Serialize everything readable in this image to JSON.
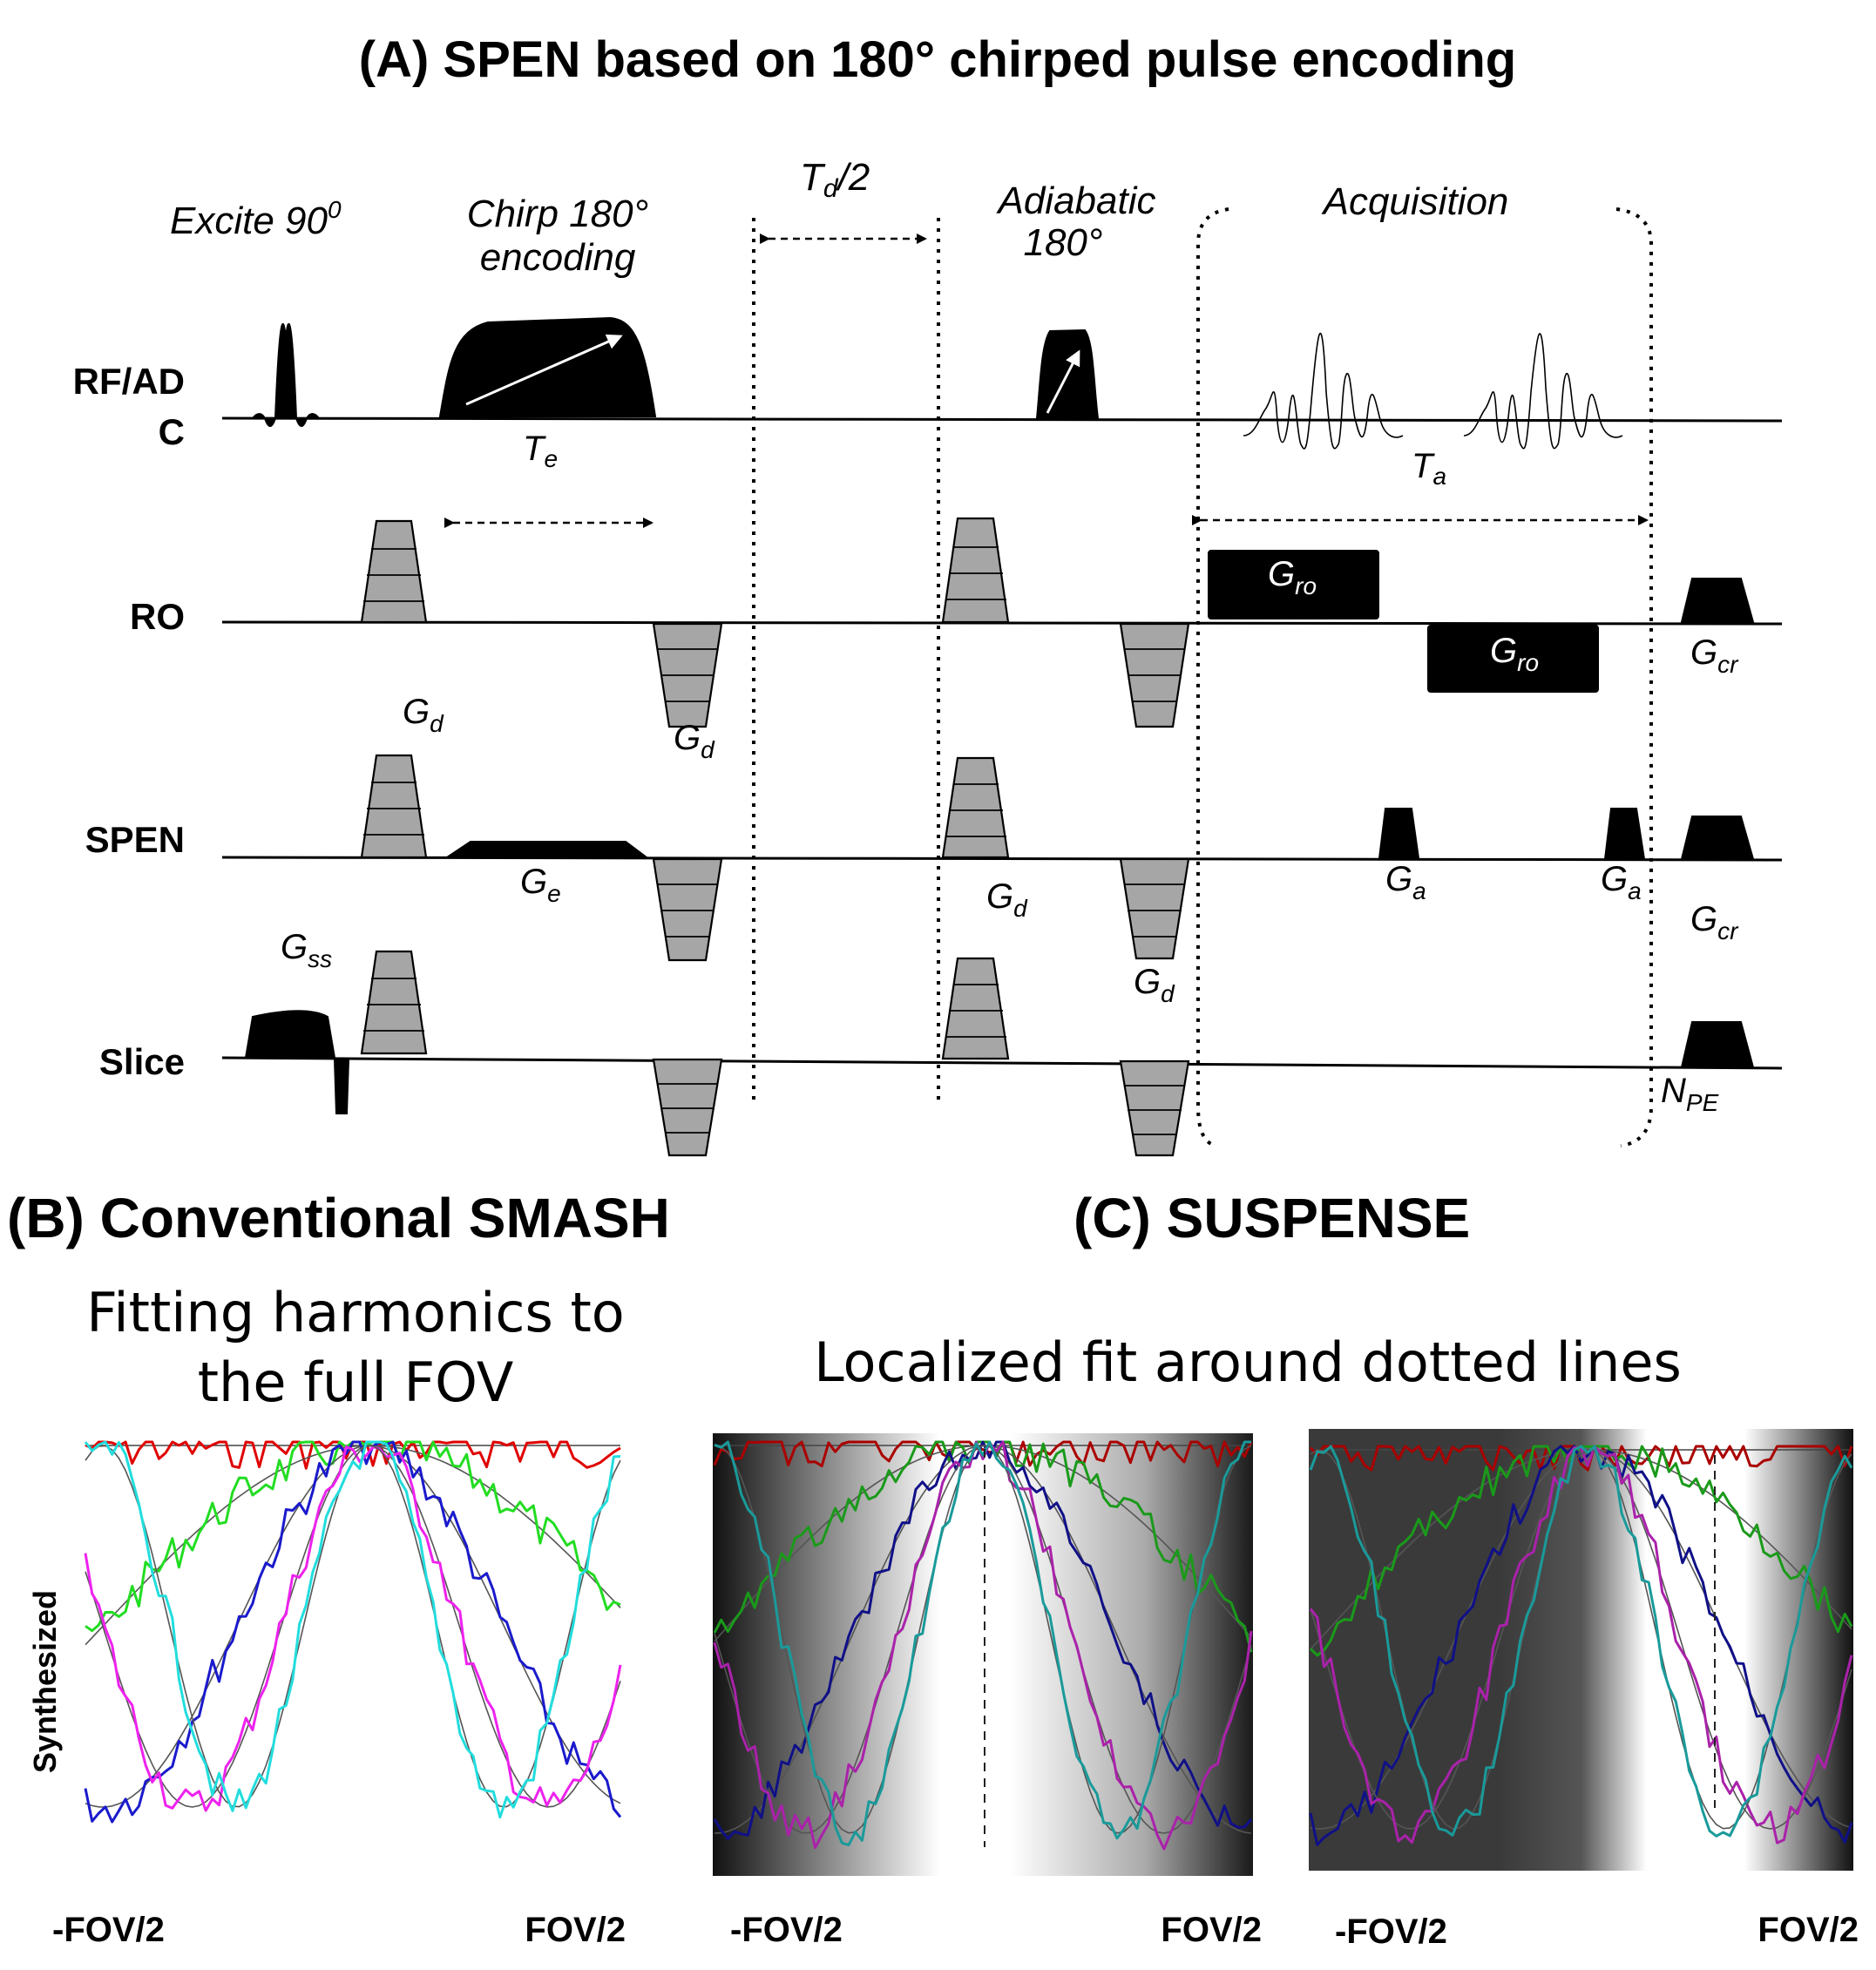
{
  "figure": {
    "title_a": "(A) SPEN based on 180° chirped pulse encoding",
    "title_b": "(B) Conventional SMASH",
    "title_c": "(C) SUSPENSE"
  },
  "seq": {
    "rows": {
      "rf_line1": "RF/AD",
      "rf_line2": "C",
      "ro": "RO",
      "spen": "SPEN",
      "slice": "Slice"
    },
    "labels": {
      "excite": "Excite 90",
      "excite_sup": "0",
      "chirp_line1": "Chirp 180°",
      "chirp_line2": "encoding",
      "td_main": "T",
      "td_sub": "d",
      "td_tail": "/2",
      "adiabatic_line1": "Adiabatic",
      "adiabatic_line2": "180°",
      "acquisition": "Acquisition",
      "te_main": "T",
      "te_sub": "e",
      "ta_main": "T",
      "ta_sub": "a",
      "g_main": "G",
      "gd_sub": "d",
      "ge_sub": "e",
      "gro_sub": "ro",
      "gcr_sub": "cr",
      "ga_sub": "a",
      "gss_sub": "ss",
      "npe_main": "N",
      "npe_sub": "PE"
    }
  },
  "panel_b": {
    "subtitle_line1": "Fitting harmonics to",
    "subtitle_line2": "the full FOV",
    "ylabel": "Synthesized",
    "x_left": "-FOV/2",
    "x_right": "FOV/2"
  },
  "panel_c": {
    "subtitle": "Localized fit around dotted lines",
    "plot1_x_left": "-FOV/2",
    "plot1_x_right": "FOV/2",
    "plot2_x_left": "-FOV/2",
    "plot2_x_right": "FOV/2"
  },
  "colors": {
    "red": "#e00000",
    "green": "#22dd22",
    "blue": "#1a1acc",
    "magenta": "#ee22ee",
    "cyan": "#22dddd",
    "darkred": "#aa0000",
    "darkgreen": "#1a9a1a",
    "darkblue": "#101088",
    "darkmagenta": "#aa22aa",
    "teal": "#1a9a9a",
    "gray_fit": "#555555",
    "gradient_gray": "#a6a6a6"
  }
}
